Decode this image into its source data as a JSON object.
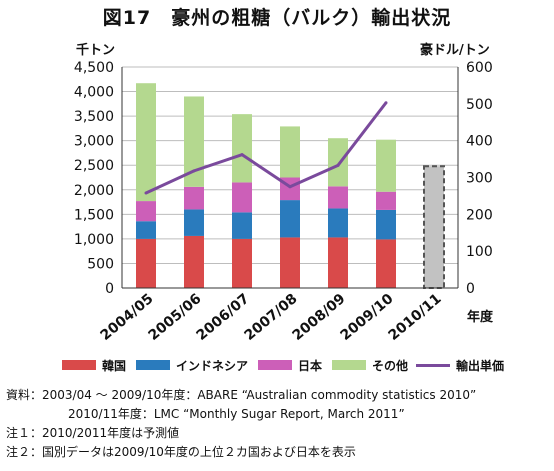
{
  "title": "図17　豪州の粗糖（バルク）輸出状況",
  "colors": {
    "korea": "#d94a4a",
    "indonesia": "#2a7bbd",
    "japan": "#cc5fb8",
    "other": "#b4d88f",
    "price_line": "#7a4a9c",
    "forecast_fill": "#c2c2c2",
    "forecast_border": "#555555",
    "grid": "#bdbdbd"
  },
  "chart_data": {
    "type": "bar",
    "stacked": true,
    "title": "図17　豪州の粗糖（バルク）輸出状況",
    "left_axis_unit": "千トン",
    "right_axis_unit": "豪ドル/トン",
    "xlabel": "年度",
    "categories": [
      "2004/05",
      "2005/06",
      "2006/07",
      "2007/08",
      "2008/09",
      "2009/10",
      "2010/11"
    ],
    "ylim": [
      0,
      4500
    ],
    "y_ticks": [
      "0",
      "500",
      "1,000",
      "1,500",
      "2,000",
      "2,500",
      "3,000",
      "3,500",
      "4,000",
      "4,500"
    ],
    "y2lim": [
      0,
      600
    ],
    "y2_ticks": [
      "0",
      "100",
      "200",
      "300",
      "400",
      "500",
      "600"
    ],
    "grid": "horizontal",
    "legend_position": "bottom",
    "series": [
      {
        "name": "韓国",
        "color_key": "korea",
        "values": [
          1000,
          1060,
          1000,
          1030,
          1030,
          990,
          null
        ]
      },
      {
        "name": "インドネシア",
        "color_key": "indonesia",
        "values": [
          360,
          540,
          540,
          760,
          590,
          600,
          null
        ]
      },
      {
        "name": "日本",
        "color_key": "japan",
        "values": [
          410,
          460,
          610,
          460,
          450,
          370,
          null
        ]
      },
      {
        "name": "その他",
        "color_key": "other",
        "values": [
          2400,
          1840,
          1390,
          1040,
          980,
          1060,
          null
        ]
      }
    ],
    "forecast_total": {
      "category": "2010/11",
      "value": 2480,
      "style": "dashed-gray"
    },
    "line_series": {
      "name": "輸出単価",
      "axis": "right",
      "values": [
        258,
        318,
        362,
        275,
        333,
        503,
        null
      ]
    }
  },
  "notes": [
    {
      "label": "資料：",
      "text": "2003/04 ～ 2009/10年度：ABARE “Australian commodity statistics 2010”"
    },
    {
      "label": "",
      "text": "2010/11年度：LMC “Monthly Sugar Report, March 2011”"
    },
    {
      "label": "注１：",
      "text": "2010/2011年度は予測値"
    },
    {
      "label": "注２：",
      "text": "国別データは2009/10年度の上位２カ国および日本を表示"
    }
  ]
}
